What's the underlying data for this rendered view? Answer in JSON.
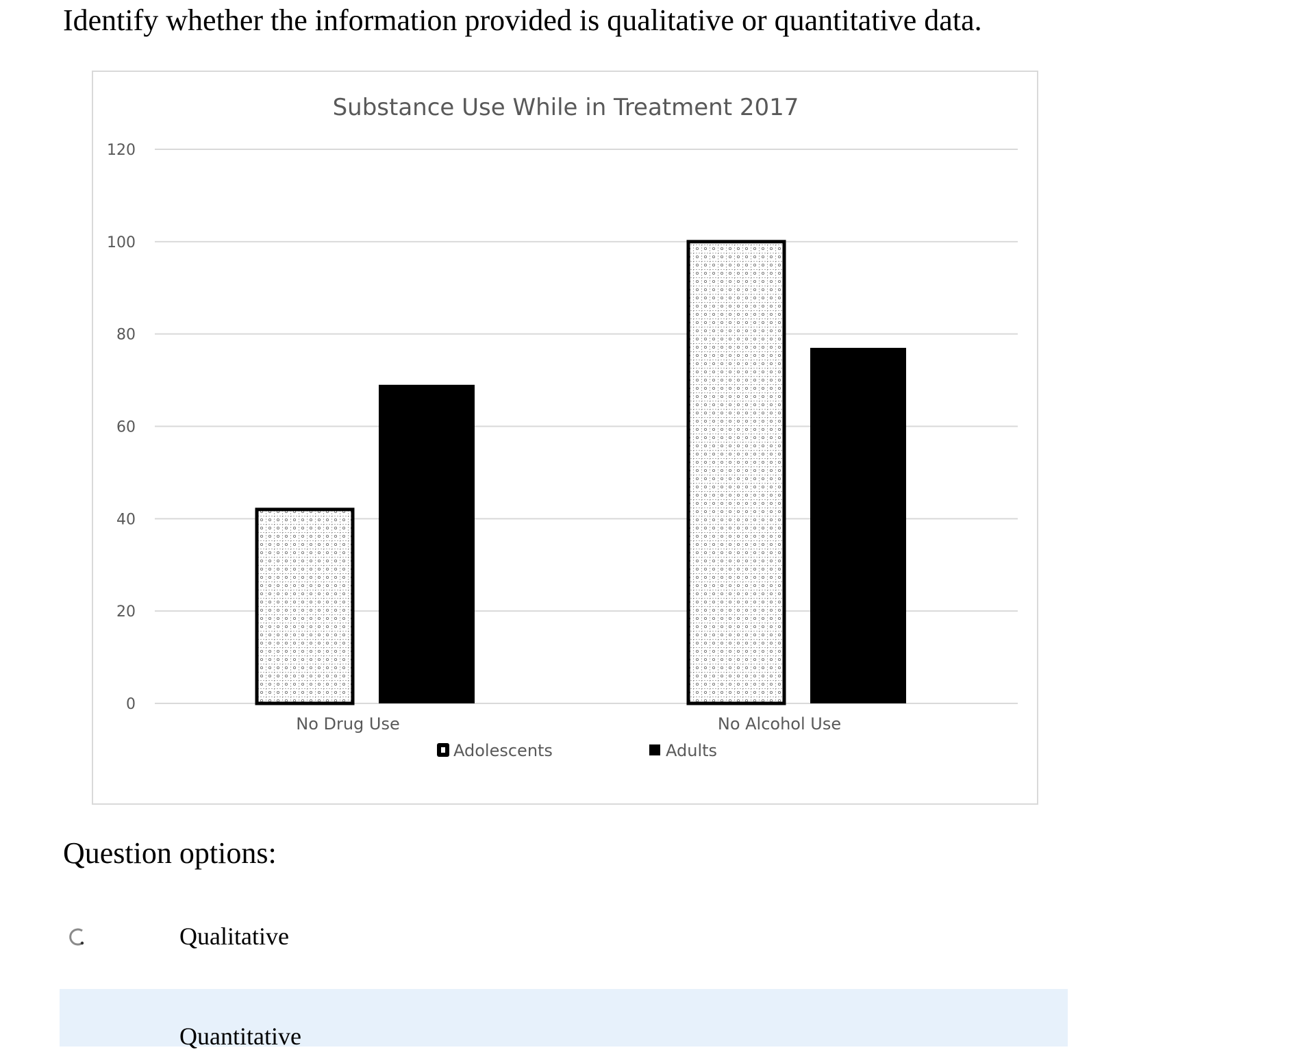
{
  "question": {
    "text": "Identify whether the information provided is qualitative or quantitative data."
  },
  "chart_data": {
    "type": "bar",
    "title": "Substance Use While in Treatment 2017",
    "categories": [
      "No Drug Use",
      "No Alcohol Use"
    ],
    "series": [
      {
        "name": "Adolescents",
        "values": [
          42,
          100
        ],
        "pattern": "dotted-grid",
        "color": "#ffffff"
      },
      {
        "name": "Adults",
        "values": [
          69,
          77
        ],
        "pattern": "solid",
        "color": "#000000"
      }
    ],
    "yticks": [
      "0",
      "20",
      "40",
      "60",
      "80",
      "100",
      "120"
    ],
    "ylim": [
      0,
      120
    ],
    "grid": true,
    "legend_position": "bottom"
  },
  "options": {
    "heading": "Question options:",
    "items": [
      {
        "label": "Qualitative",
        "radio_icon": "radio-loading-icon"
      },
      {
        "label": "Quantitative",
        "radio_icon": "radio-icon",
        "highlighted": true
      }
    ],
    "highlight_color": "#e7f1fb"
  }
}
